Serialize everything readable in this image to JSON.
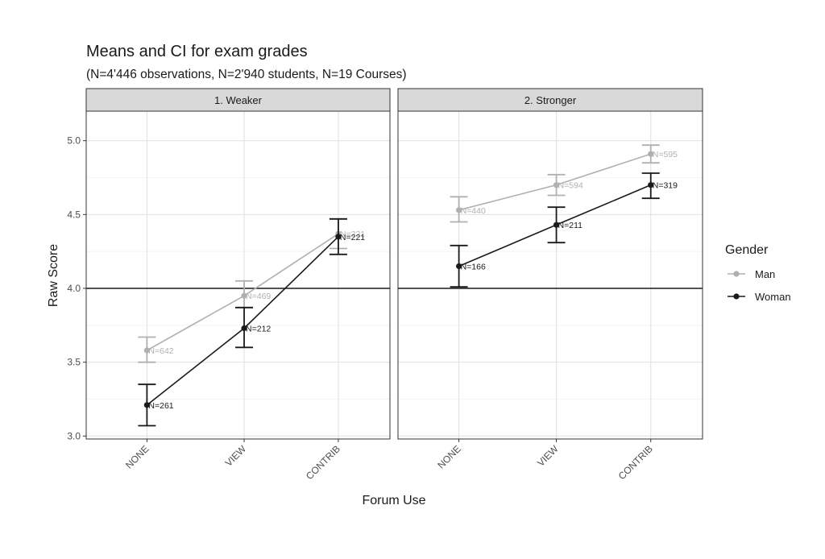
{
  "chart_data": {
    "type": "line",
    "title": "Means and CI for exam grades",
    "subtitle": "(N=4'446 observations, N=2'940 students, N=19 Courses)",
    "xlabel": "Forum Use",
    "ylabel": "Raw Score",
    "categories": [
      "NONE",
      "VIEW",
      "CONTRIB"
    ],
    "ylim": [
      2.98,
      5.2
    ],
    "yticks": [
      3.0,
      3.5,
      4.0,
      4.5,
      5.0
    ],
    "yticklabels": [
      "3.0",
      "3.5",
      "4.0",
      "4.5",
      "5.0"
    ],
    "reference_line": 4.0,
    "grid": true,
    "legend": {
      "title": "Gender",
      "placement": "right",
      "entries": [
        "Man",
        "Woman"
      ]
    },
    "colors": {
      "Man": "#b0b0b0",
      "Woman": "#1a1a1a"
    },
    "panels": [
      {
        "label": "1. Weaker",
        "series": [
          {
            "name": "Man",
            "mean": [
              3.58,
              3.95,
              4.37
            ],
            "ci_low": [
              3.5,
              3.87,
              4.27
            ],
            "ci_high": [
              3.67,
              4.05,
              4.47
            ],
            "n_labels": [
              "N=642",
              "N=469",
              "N=221"
            ]
          },
          {
            "name": "Woman",
            "mean": [
              3.21,
              3.73,
              4.35
            ],
            "ci_low": [
              3.07,
              3.6,
              4.23
            ],
            "ci_high": [
              3.35,
              3.87,
              4.47
            ],
            "n_labels": [
              "N=261",
              "N=212",
              "N=221"
            ]
          }
        ]
      },
      {
        "label": "2. Stronger",
        "series": [
          {
            "name": "Man",
            "mean": [
              4.53,
              4.7,
              4.91
            ],
            "ci_low": [
              4.45,
              4.63,
              4.85
            ],
            "ci_high": [
              4.62,
              4.77,
              4.97
            ],
            "n_labels": [
              "N=440",
              "N=594",
              "N=595"
            ]
          },
          {
            "name": "Woman",
            "mean": [
              4.15,
              4.43,
              4.7
            ],
            "ci_low": [
              4.01,
              4.31,
              4.61
            ],
            "ci_high": [
              4.29,
              4.55,
              4.78
            ],
            "n_labels": [
              "N=166",
              "N=211",
              "N=319"
            ]
          }
        ]
      }
    ]
  }
}
